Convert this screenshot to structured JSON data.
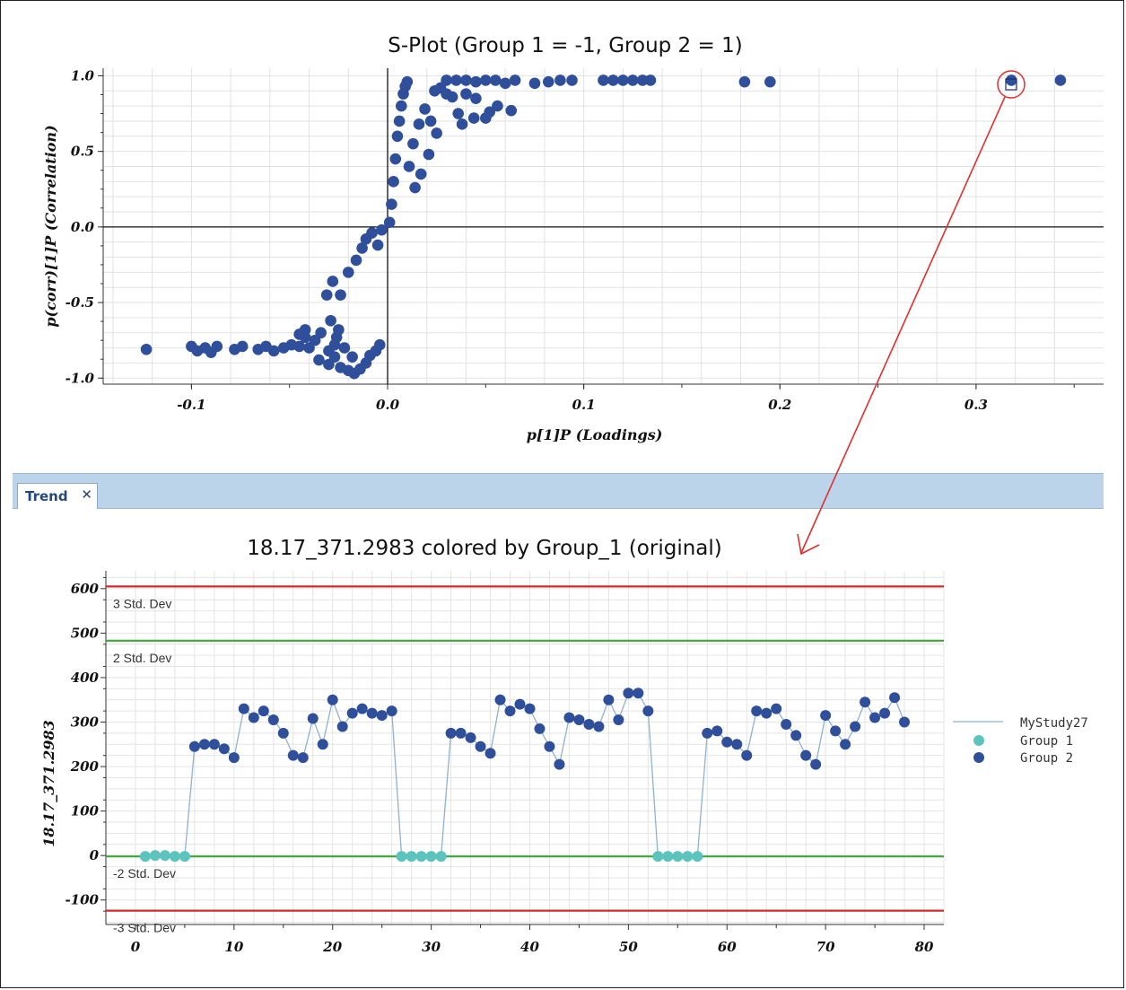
{
  "colors": {
    "group1": "#5cc4bc",
    "group2": "#2f4f9a",
    "line": "#8fb2d2",
    "red": "#d42a2a",
    "green": "#3aaa35",
    "highlight": "#e03030"
  },
  "chart_data": [
    {
      "type": "scatter",
      "title": "S-Plot (Group 1 = -1, Group 2 = 1)",
      "xlabel": "p[1]P (Loadings)",
      "ylabel": "p(corr)[1]P (Correlation)",
      "xlim": [
        -0.145,
        0.365
      ],
      "ylim": [
        -1.04,
        1.05
      ],
      "x_ticks": [
        "-0.1",
        "0.0",
        "0.1",
        "0.2",
        "0.3"
      ],
      "y_ticks": [
        "1.0",
        "0.5",
        "0.0",
        "-0.5",
        "-1.0"
      ],
      "grid": true,
      "series": [
        {
          "color": "#2f4f9a",
          "points": [
            [
              -0.123,
              -0.81
            ],
            [
              -0.1,
              -0.79
            ],
            [
              -0.097,
              -0.82
            ],
            [
              -0.093,
              -0.8
            ],
            [
              -0.09,
              -0.83
            ],
            [
              -0.087,
              -0.79
            ],
            [
              -0.078,
              -0.81
            ],
            [
              -0.074,
              -0.79
            ],
            [
              -0.066,
              -0.81
            ],
            [
              -0.062,
              -0.79
            ],
            [
              -0.058,
              -0.82
            ],
            [
              -0.053,
              -0.8
            ],
            [
              -0.049,
              -0.78
            ],
            [
              -0.045,
              -0.79
            ],
            [
              -0.04,
              -0.8
            ],
            [
              -0.042,
              -0.73
            ],
            [
              -0.037,
              -0.75
            ],
            [
              -0.034,
              -0.7
            ],
            [
              -0.03,
              -0.82
            ],
            [
              -0.027,
              -0.78
            ],
            [
              -0.025,
              -0.68
            ],
            [
              -0.042,
              -0.68
            ],
            [
              -0.045,
              -0.71
            ],
            [
              -0.035,
              -0.88
            ],
            [
              -0.03,
              -0.91
            ],
            [
              -0.027,
              -0.86
            ],
            [
              -0.024,
              -0.93
            ],
            [
              -0.02,
              -0.95
            ],
            [
              -0.017,
              -0.97
            ],
            [
              -0.014,
              -0.94
            ],
            [
              -0.011,
              -0.9
            ],
            [
              -0.009,
              -0.85
            ],
            [
              -0.006,
              -0.82
            ],
            [
              -0.004,
              -0.78
            ],
            [
              -0.018,
              -0.86
            ],
            [
              -0.022,
              -0.8
            ],
            [
              -0.026,
              -0.73
            ],
            [
              -0.029,
              -0.62
            ],
            [
              -0.031,
              -0.45
            ],
            [
              -0.028,
              -0.36
            ],
            [
              -0.024,
              -0.45
            ],
            [
              -0.02,
              -0.3
            ],
            [
              -0.016,
              -0.22
            ],
            [
              -0.013,
              -0.14
            ],
            [
              -0.011,
              -0.08
            ],
            [
              -0.008,
              -0.04
            ],
            [
              -0.005,
              -0.12
            ],
            [
              -0.003,
              -0.02
            ],
            [
              0.001,
              0.03
            ],
            [
              0.002,
              0.15
            ],
            [
              0.003,
              0.3
            ],
            [
              0.004,
              0.45
            ],
            [
              0.005,
              0.6
            ],
            [
              0.006,
              0.7
            ],
            [
              0.007,
              0.8
            ],
            [
              0.008,
              0.88
            ],
            [
              0.009,
              0.93
            ],
            [
              0.01,
              0.96
            ],
            [
              0.011,
              0.4
            ],
            [
              0.013,
              0.55
            ],
            [
              0.016,
              0.68
            ],
            [
              0.019,
              0.78
            ],
            [
              0.022,
              0.7
            ],
            [
              0.025,
              0.62
            ],
            [
              0.021,
              0.48
            ],
            [
              0.017,
              0.35
            ],
            [
              0.014,
              0.26
            ],
            [
              0.024,
              0.9
            ],
            [
              0.027,
              0.92
            ],
            [
              0.03,
              0.88
            ],
            [
              0.033,
              0.86
            ],
            [
              0.036,
              0.75
            ],
            [
              0.038,
              0.68
            ],
            [
              0.044,
              0.72
            ],
            [
              0.05,
              0.72
            ],
            [
              0.052,
              0.76
            ],
            [
              0.056,
              0.8
            ],
            [
              0.063,
              0.77
            ],
            [
              0.045,
              0.85
            ],
            [
              0.04,
              0.88
            ],
            [
              0.03,
              0.97
            ],
            [
              0.035,
              0.97
            ],
            [
              0.04,
              0.97
            ],
            [
              0.045,
              0.96
            ],
            [
              0.05,
              0.97
            ],
            [
              0.055,
              0.97
            ],
            [
              0.06,
              0.95
            ],
            [
              0.065,
              0.97
            ],
            [
              0.075,
              0.95
            ],
            [
              0.082,
              0.96
            ],
            [
              0.088,
              0.97
            ],
            [
              0.094,
              0.97
            ],
            [
              0.11,
              0.97
            ],
            [
              0.115,
              0.97
            ],
            [
              0.12,
              0.97
            ],
            [
              0.125,
              0.97
            ],
            [
              0.13,
              0.97
            ],
            [
              0.134,
              0.97
            ],
            [
              0.182,
              0.96
            ],
            [
              0.195,
              0.96
            ],
            [
              0.318,
              0.97
            ],
            [
              0.343,
              0.97
            ]
          ]
        }
      ]
    },
    {
      "type": "line",
      "title": "18.17_371.2983 colored by Group_1 (original)",
      "xlabel": "",
      "ylabel": "18.17_371.2983",
      "xlim": [
        -3,
        82
      ],
      "ylim": [
        -155,
        640
      ],
      "x_ticks": [
        "0",
        "10",
        "20",
        "30",
        "40",
        "50",
        "60",
        "70",
        "80"
      ],
      "y_ticks": [
        "600",
        "500",
        "400",
        "300",
        "200",
        "100",
        "0",
        "-100"
      ],
      "grid": true,
      "legend_position": "right",
      "reference_lines": [
        {
          "label": "3 Std. Dev",
          "y": 605,
          "color": "red"
        },
        {
          "label": "2 Std. Dev",
          "y": 483,
          "color": "green"
        },
        {
          "label": "-2 Std. Dev",
          "y": -2,
          "color": "green"
        },
        {
          "label": "-3 Std. Dev",
          "y": -124,
          "color": "red"
        }
      ],
      "legend": {
        "line": "MyStudy27",
        "group1": "Group 1",
        "group2": "Group 2"
      },
      "series": [
        {
          "name": "MyStudy27",
          "x": [
            1,
            2,
            3,
            4,
            5,
            6,
            7,
            8,
            9,
            10,
            11,
            12,
            13,
            14,
            15,
            16,
            17,
            18,
            19,
            20,
            21,
            22,
            23,
            24,
            25,
            26,
            27,
            28,
            29,
            30,
            31,
            32,
            33,
            34,
            35,
            36,
            37,
            38,
            39,
            40,
            41,
            42,
            43,
            44,
            45,
            46,
            47,
            48,
            49,
            50,
            51,
            52,
            53,
            54,
            55,
            56,
            57,
            58,
            59,
            60,
            61,
            62,
            63,
            64,
            65,
            66,
            67,
            68,
            69,
            70,
            71,
            72,
            73,
            74,
            75,
            76,
            77,
            78
          ],
          "y": [
            -2,
            0,
            0,
            -2,
            -2,
            245,
            250,
            250,
            240,
            220,
            330,
            310,
            325,
            305,
            275,
            225,
            220,
            308,
            250,
            350,
            290,
            320,
            330,
            320,
            315,
            325,
            -2,
            -2,
            -2,
            -2,
            -2,
            275,
            275,
            265,
            245,
            230,
            350,
            325,
            340,
            330,
            285,
            245,
            205,
            310,
            305,
            295,
            290,
            350,
            305,
            365,
            365,
            325,
            -2,
            -2,
            -2,
            -2,
            -2,
            275,
            280,
            255,
            250,
            225,
            325,
            320,
            330,
            295,
            270,
            225,
            205,
            315,
            280,
            250,
            290,
            345,
            310,
            320,
            355,
            300
          ],
          "group": [
            1,
            1,
            1,
            1,
            1,
            2,
            2,
            2,
            2,
            2,
            2,
            2,
            2,
            2,
            2,
            2,
            2,
            2,
            2,
            2,
            2,
            2,
            2,
            2,
            2,
            2,
            1,
            1,
            1,
            1,
            1,
            2,
            2,
            2,
            2,
            2,
            2,
            2,
            2,
            2,
            2,
            2,
            2,
            2,
            2,
            2,
            2,
            2,
            2,
            2,
            2,
            2,
            1,
            1,
            1,
            1,
            1,
            2,
            2,
            2,
            2,
            2,
            2,
            2,
            2,
            2,
            2,
            2,
            2,
            2,
            2,
            2,
            2,
            2,
            2,
            2,
            2,
            2
          ]
        }
      ]
    }
  ]
}
